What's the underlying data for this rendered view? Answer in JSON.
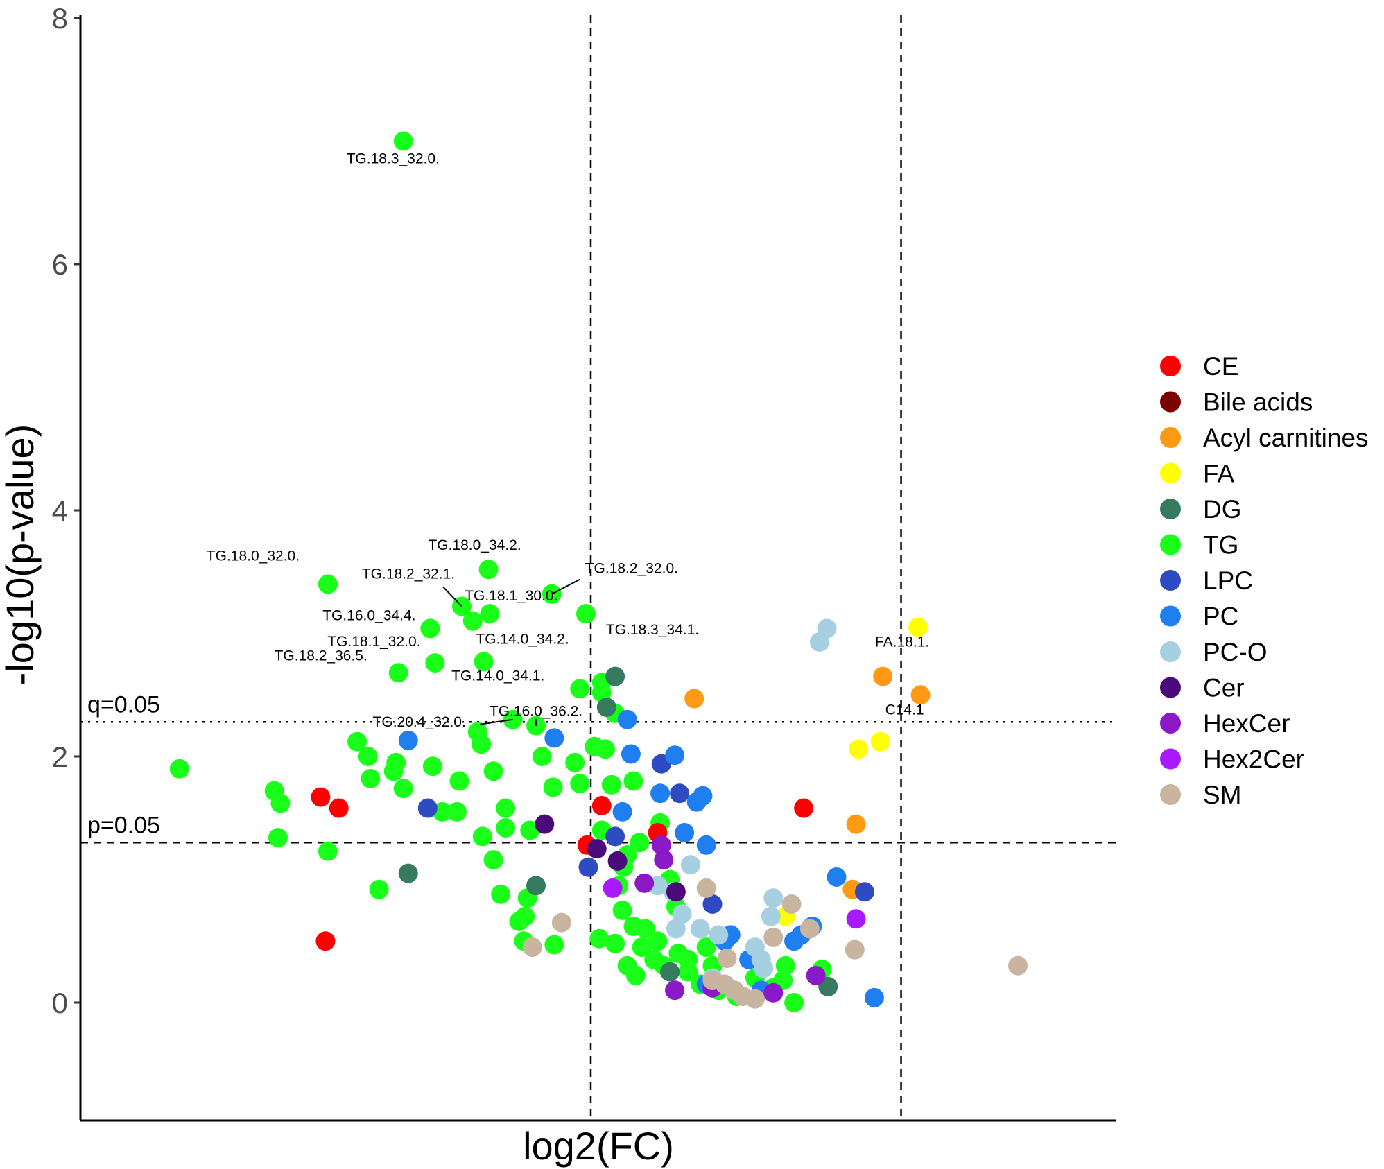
{
  "chart_data": {
    "type": "scatter",
    "xlabel": "log2(FC)",
    "ylabel": "-log10(p-value)",
    "ylim": [
      -1,
      8
    ],
    "xlim": [
      -4.1,
      4.35
    ],
    "yticks": [
      "0",
      "2",
      "4",
      "6",
      "8"
    ],
    "grid": false,
    "legend_position": "right",
    "vlines": [
      0,
      2.55
    ],
    "hlines": [
      {
        "y": 2.28,
        "label": "q=0.05",
        "style": "dotted"
      },
      {
        "y": 1.3,
        "label": "p=0.05",
        "style": "dashed"
      }
    ],
    "categories": [
      {
        "name": "CE",
        "color": "#ff0000"
      },
      {
        "name": "Bile acids",
        "color": "#7a0000"
      },
      {
        "name": "Acyl carnitines",
        "color": "#ff9a12"
      },
      {
        "name": "FA",
        "color": "#ffff00"
      },
      {
        "name": "DG",
        "color": "#367a60"
      },
      {
        "name": "TG",
        "color": "#19ff19"
      },
      {
        "name": "LPC",
        "color": "#2e4bc2"
      },
      {
        "name": "PC",
        "color": "#1f7ff0"
      },
      {
        "name": "PC-O",
        "color": "#a6d0e2"
      },
      {
        "name": "Cer",
        "color": "#4a0a7a"
      },
      {
        "name": "HexCer",
        "color": "#8b19c8"
      },
      {
        "name": "Hex2Cer",
        "color": "#a819ff"
      },
      {
        "name": "SM",
        "color": "#c8b49f"
      }
    ],
    "points": [
      {
        "x": -1.54,
        "y": 7.0,
        "c": "TG",
        "label": "TG.18.3_32.0."
      },
      {
        "x": -2.16,
        "y": 3.4,
        "c": "TG",
        "label": "TG.18.0_32.0."
      },
      {
        "x": -0.84,
        "y": 3.52,
        "c": "TG",
        "label": "TG.18.0_34.2."
      },
      {
        "x": -1.06,
        "y": 3.22,
        "c": "TG",
        "label": "TG.18.2_32.1."
      },
      {
        "x": -0.32,
        "y": 3.32,
        "c": "TG",
        "label": "TG.18.2_32.0."
      },
      {
        "x": -0.83,
        "y": 3.16,
        "c": "TG",
        "label": "TG.18.1_30.0."
      },
      {
        "x": -1.32,
        "y": 3.04,
        "c": "TG",
        "label": "TG.16.0_34.4."
      },
      {
        "x": -0.97,
        "y": 3.1,
        "c": "TG"
      },
      {
        "x": -0.04,
        "y": 3.16,
        "c": "TG",
        "label": "TG.18.3_34.1."
      },
      {
        "x": -1.28,
        "y": 2.76,
        "c": "TG",
        "label": "TG.18.1_32.0."
      },
      {
        "x": -0.88,
        "y": 2.77,
        "c": "TG",
        "label": "TG.14.0_34.2."
      },
      {
        "x": -1.58,
        "y": 2.68,
        "c": "TG",
        "label": "TG.18.2_36.5."
      },
      {
        "x": -0.09,
        "y": 2.55,
        "c": "TG",
        "label": "TG.14.0_34.1."
      },
      {
        "x": 0.09,
        "y": 2.6,
        "c": "TG"
      },
      {
        "x": 0.09,
        "y": 2.52,
        "c": "TG"
      },
      {
        "x": -0.64,
        "y": 2.3,
        "c": "TG",
        "label": "TG.20.4_32.0."
      },
      {
        "x": -0.45,
        "y": 2.25,
        "c": "TG",
        "label": "TG.16.0_36.2."
      },
      {
        "x": 0.2,
        "y": 2.35,
        "c": "TG"
      },
      {
        "x": -0.93,
        "y": 2.2,
        "c": "TG"
      },
      {
        "x": -0.9,
        "y": 2.1,
        "c": "TG"
      },
      {
        "x": -1.92,
        "y": 2.12,
        "c": "TG"
      },
      {
        "x": -1.83,
        "y": 2.0,
        "c": "TG"
      },
      {
        "x": -1.6,
        "y": 1.95,
        "c": "TG"
      },
      {
        "x": -1.62,
        "y": 1.88,
        "c": "TG"
      },
      {
        "x": -1.3,
        "y": 1.92,
        "c": "TG"
      },
      {
        "x": -0.8,
        "y": 1.88,
        "c": "TG"
      },
      {
        "x": -0.4,
        "y": 2.0,
        "c": "TG"
      },
      {
        "x": -0.13,
        "y": 1.95,
        "c": "TG"
      },
      {
        "x": 0.03,
        "y": 2.08,
        "c": "TG"
      },
      {
        "x": 0.12,
        "y": 2.06,
        "c": "TG"
      },
      {
        "x": -3.38,
        "y": 1.9,
        "c": "TG"
      },
      {
        "x": -2.6,
        "y": 1.72,
        "c": "TG"
      },
      {
        "x": -2.55,
        "y": 1.62,
        "c": "TG"
      },
      {
        "x": -1.81,
        "y": 1.82,
        "c": "TG"
      },
      {
        "x": -1.54,
        "y": 1.74,
        "c": "TG"
      },
      {
        "x": -1.08,
        "y": 1.8,
        "c": "TG"
      },
      {
        "x": -0.31,
        "y": 1.75,
        "c": "TG"
      },
      {
        "x": -0.09,
        "y": 1.78,
        "c": "TG"
      },
      {
        "x": 0.17,
        "y": 1.77,
        "c": "TG"
      },
      {
        "x": 0.35,
        "y": 1.8,
        "c": "TG"
      },
      {
        "x": -1.22,
        "y": 1.55,
        "c": "TG"
      },
      {
        "x": -1.1,
        "y": 1.55,
        "c": "TG"
      },
      {
        "x": -0.7,
        "y": 1.58,
        "c": "TG"
      },
      {
        "x": -0.7,
        "y": 1.42,
        "c": "TG"
      },
      {
        "x": -0.5,
        "y": 1.4,
        "c": "TG"
      },
      {
        "x": -0.89,
        "y": 1.35,
        "c": "TG"
      },
      {
        "x": -2.57,
        "y": 1.34,
        "c": "TG"
      },
      {
        "x": -2.16,
        "y": 1.23,
        "c": "TG"
      },
      {
        "x": -0.8,
        "y": 1.16,
        "c": "TG"
      },
      {
        "x": 0.09,
        "y": 1.4,
        "c": "TG"
      },
      {
        "x": 0.4,
        "y": 1.3,
        "c": "TG"
      },
      {
        "x": 0.57,
        "y": 1.46,
        "c": "TG"
      },
      {
        "x": -1.74,
        "y": 0.92,
        "c": "TG"
      },
      {
        "x": -0.74,
        "y": 0.88,
        "c": "TG"
      },
      {
        "x": -0.52,
        "y": 0.85,
        "c": "TG"
      },
      {
        "x": -0.54,
        "y": 0.7,
        "c": "TG"
      },
      {
        "x": -0.59,
        "y": 0.66,
        "c": "TG"
      },
      {
        "x": -0.55,
        "y": 0.5,
        "c": "TG"
      },
      {
        "x": -0.3,
        "y": 0.47,
        "c": "TG"
      },
      {
        "x": 0.07,
        "y": 0.52,
        "c": "TG"
      },
      {
        "x": 0.2,
        "y": 0.48,
        "c": "TG"
      },
      {
        "x": 0.27,
        "y": 1.1,
        "c": "TG"
      },
      {
        "x": 0.23,
        "y": 0.95,
        "c": "TG"
      },
      {
        "x": 0.26,
        "y": 0.75,
        "c": "TG"
      },
      {
        "x": 0.35,
        "y": 0.62,
        "c": "TG"
      },
      {
        "x": 0.42,
        "y": 0.45,
        "c": "TG"
      },
      {
        "x": 0.52,
        "y": 0.35,
        "c": "TG"
      },
      {
        "x": 0.37,
        "y": 0.22,
        "c": "TG"
      },
      {
        "x": 0.6,
        "y": 0.3,
        "c": "TG"
      },
      {
        "x": 0.72,
        "y": 0.4,
        "c": "TG"
      },
      {
        "x": 0.8,
        "y": 0.25,
        "c": "TG"
      },
      {
        "x": 0.9,
        "y": 0.15,
        "c": "TG"
      },
      {
        "x": 1.05,
        "y": 0.1,
        "c": "TG"
      },
      {
        "x": 1.2,
        "y": 0.05,
        "c": "TG"
      },
      {
        "x": 1.35,
        "y": 0.2,
        "c": "TG"
      },
      {
        "x": 1.5,
        "y": 0.12,
        "c": "TG"
      },
      {
        "x": 1.6,
        "y": 0.3,
        "c": "TG"
      },
      {
        "x": 1.58,
        "y": 0.18,
        "c": "TG"
      },
      {
        "x": 1.67,
        "y": 0.0,
        "c": "TG"
      },
      {
        "x": 1.9,
        "y": 0.27,
        "c": "TG"
      },
      {
        "x": 0.45,
        "y": 0.6,
        "c": "TG"
      },
      {
        "x": 0.55,
        "y": 0.5,
        "c": "TG"
      },
      {
        "x": 0.7,
        "y": 0.78,
        "c": "TG"
      },
      {
        "x": 0.65,
        "y": 1.0,
        "c": "TG"
      },
      {
        "x": 0.3,
        "y": 1.2,
        "c": "TG"
      },
      {
        "x": 0.8,
        "y": 0.35,
        "c": "TG"
      },
      {
        "x": 0.95,
        "y": 0.45,
        "c": "TG"
      },
      {
        "x": 1.0,
        "y": 0.3,
        "c": "TG"
      },
      {
        "x": 0.3,
        "y": 0.3,
        "c": "TG"
      },
      {
        "x": -2.22,
        "y": 1.67,
        "c": "CE"
      },
      {
        "x": -2.07,
        "y": 1.58,
        "c": "CE"
      },
      {
        "x": -2.18,
        "y": 0.5,
        "c": "CE"
      },
      {
        "x": 0.09,
        "y": 1.6,
        "c": "CE"
      },
      {
        "x": -0.03,
        "y": 1.28,
        "c": "CE"
      },
      {
        "x": 0.55,
        "y": 1.38,
        "c": "CE"
      },
      {
        "x": 1.75,
        "y": 1.58,
        "c": "CE"
      },
      {
        "x": 0.85,
        "y": 2.47,
        "c": "Acyl carnitines"
      },
      {
        "x": 2.4,
        "y": 2.65,
        "c": "Acyl carnitines"
      },
      {
        "x": 2.71,
        "y": 2.5,
        "c": "Acyl carnitines",
        "label": "C14.1"
      },
      {
        "x": 2.18,
        "y": 1.45,
        "c": "Acyl carnitines"
      },
      {
        "x": 2.15,
        "y": 0.92,
        "c": "Acyl carnitines"
      },
      {
        "x": 2.69,
        "y": 3.05,
        "c": "FA",
        "label": "FA.18.1."
      },
      {
        "x": 2.38,
        "y": 2.12,
        "c": "FA"
      },
      {
        "x": 2.2,
        "y": 2.06,
        "c": "FA"
      },
      {
        "x": 1.6,
        "y": 0.7,
        "c": "FA"
      },
      {
        "x": 0.2,
        "y": 2.65,
        "c": "DG"
      },
      {
        "x": 0.13,
        "y": 2.4,
        "c": "DG"
      },
      {
        "x": -1.5,
        "y": 1.05,
        "c": "DG"
      },
      {
        "x": -0.45,
        "y": 0.95,
        "c": "DG"
      },
      {
        "x": 1.95,
        "y": 0.13,
        "c": "DG"
      },
      {
        "x": 0.65,
        "y": 0.25,
        "c": "DG"
      },
      {
        "x": -1.34,
        "y": 1.58,
        "c": "LPC"
      },
      {
        "x": 0.58,
        "y": 1.94,
        "c": "LPC"
      },
      {
        "x": 0.73,
        "y": 1.7,
        "c": "LPC"
      },
      {
        "x": 0.2,
        "y": 1.35,
        "c": "LPC"
      },
      {
        "x": -0.02,
        "y": 1.1,
        "c": "LPC"
      },
      {
        "x": 2.25,
        "y": 0.9,
        "c": "LPC"
      },
      {
        "x": 1.0,
        "y": 0.8,
        "c": "LPC"
      },
      {
        "x": -1.5,
        "y": 2.13,
        "c": "PC"
      },
      {
        "x": 0.3,
        "y": 2.3,
        "c": "PC"
      },
      {
        "x": -0.3,
        "y": 2.15,
        "c": "PC"
      },
      {
        "x": 0.33,
        "y": 2.02,
        "c": "PC"
      },
      {
        "x": 0.69,
        "y": 2.01,
        "c": "PC"
      },
      {
        "x": 0.57,
        "y": 1.7,
        "c": "PC"
      },
      {
        "x": 0.92,
        "y": 1.68,
        "c": "PC"
      },
      {
        "x": 0.87,
        "y": 1.63,
        "c": "PC"
      },
      {
        "x": 0.26,
        "y": 1.55,
        "c": "PC"
      },
      {
        "x": 0.77,
        "y": 1.38,
        "c": "PC"
      },
      {
        "x": 0.95,
        "y": 1.28,
        "c": "PC"
      },
      {
        "x": 2.02,
        "y": 1.02,
        "c": "PC"
      },
      {
        "x": 2.33,
        "y": 0.04,
        "c": "PC"
      },
      {
        "x": 1.82,
        "y": 0.62,
        "c": "PC"
      },
      {
        "x": 1.67,
        "y": 0.5,
        "c": "PC"
      },
      {
        "x": 1.1,
        "y": 0.5,
        "c": "PC"
      },
      {
        "x": 1.3,
        "y": 0.35,
        "c": "PC"
      },
      {
        "x": 0.95,
        "y": 0.15,
        "c": "PC"
      },
      {
        "x": 1.4,
        "y": 0.1,
        "c": "PC"
      },
      {
        "x": 1.15,
        "y": 0.55,
        "c": "PC"
      },
      {
        "x": 1.73,
        "y": 0.55,
        "c": "PC"
      },
      {
        "x": 1.88,
        "y": 2.93,
        "c": "PC-O"
      },
      {
        "x": 1.94,
        "y": 3.04,
        "c": "PC-O"
      },
      {
        "x": 0.82,
        "y": 1.12,
        "c": "PC-O"
      },
      {
        "x": 0.68,
        "y": 0.9,
        "c": "PC-O"
      },
      {
        "x": 0.75,
        "y": 0.72,
        "c": "PC-O"
      },
      {
        "x": 0.7,
        "y": 0.6,
        "c": "PC-O"
      },
      {
        "x": 0.9,
        "y": 0.6,
        "c": "PC-O"
      },
      {
        "x": 1.05,
        "y": 0.55,
        "c": "PC-O"
      },
      {
        "x": 1.5,
        "y": 0.85,
        "c": "PC-O"
      },
      {
        "x": 1.48,
        "y": 0.7,
        "c": "PC-O"
      },
      {
        "x": 1.35,
        "y": 0.45,
        "c": "PC-O"
      },
      {
        "x": 1.4,
        "y": 0.35,
        "c": "PC-O"
      },
      {
        "x": 1.42,
        "y": 0.28,
        "c": "PC-O"
      },
      {
        "x": 1.0,
        "y": 0.2,
        "c": "PC-O"
      },
      {
        "x": 0.55,
        "y": 0.95,
        "c": "PC-O"
      },
      {
        "x": -0.38,
        "y": 1.45,
        "c": "Cer"
      },
      {
        "x": 0.05,
        "y": 1.25,
        "c": "Cer"
      },
      {
        "x": 0.22,
        "y": 1.15,
        "c": "Cer"
      },
      {
        "x": 0.7,
        "y": 0.9,
        "c": "Cer"
      },
      {
        "x": 0.58,
        "y": 1.28,
        "c": "HexCer"
      },
      {
        "x": 0.6,
        "y": 1.16,
        "c": "HexCer"
      },
      {
        "x": 0.44,
        "y": 0.97,
        "c": "HexCer"
      },
      {
        "x": 0.69,
        "y": 0.1,
        "c": "HexCer"
      },
      {
        "x": 1.85,
        "y": 0.22,
        "c": "HexCer"
      },
      {
        "x": 1.5,
        "y": 0.08,
        "c": "HexCer"
      },
      {
        "x": 1.0,
        "y": 0.12,
        "c": "HexCer"
      },
      {
        "x": 0.18,
        "y": 0.93,
        "c": "Hex2Cer"
      },
      {
        "x": 2.18,
        "y": 0.68,
        "c": "Hex2Cer"
      },
      {
        "x": -0.24,
        "y": 0.65,
        "c": "SM"
      },
      {
        "x": -0.48,
        "y": 0.45,
        "c": "SM"
      },
      {
        "x": 0.95,
        "y": 0.93,
        "c": "SM"
      },
      {
        "x": 1.65,
        "y": 0.8,
        "c": "SM"
      },
      {
        "x": 1.5,
        "y": 0.53,
        "c": "SM"
      },
      {
        "x": 1.8,
        "y": 0.6,
        "c": "SM"
      },
      {
        "x": 1.12,
        "y": 0.36,
        "c": "SM"
      },
      {
        "x": 2.17,
        "y": 0.43,
        "c": "SM"
      },
      {
        "x": 3.51,
        "y": 0.3,
        "c": "SM"
      },
      {
        "x": 1.0,
        "y": 0.18,
        "c": "SM"
      },
      {
        "x": 1.1,
        "y": 0.15,
        "c": "SM"
      },
      {
        "x": 1.18,
        "y": 0.1,
        "c": "SM"
      },
      {
        "x": 1.25,
        "y": 0.05,
        "c": "SM"
      },
      {
        "x": 1.35,
        "y": 0.03,
        "c": "SM"
      }
    ]
  }
}
